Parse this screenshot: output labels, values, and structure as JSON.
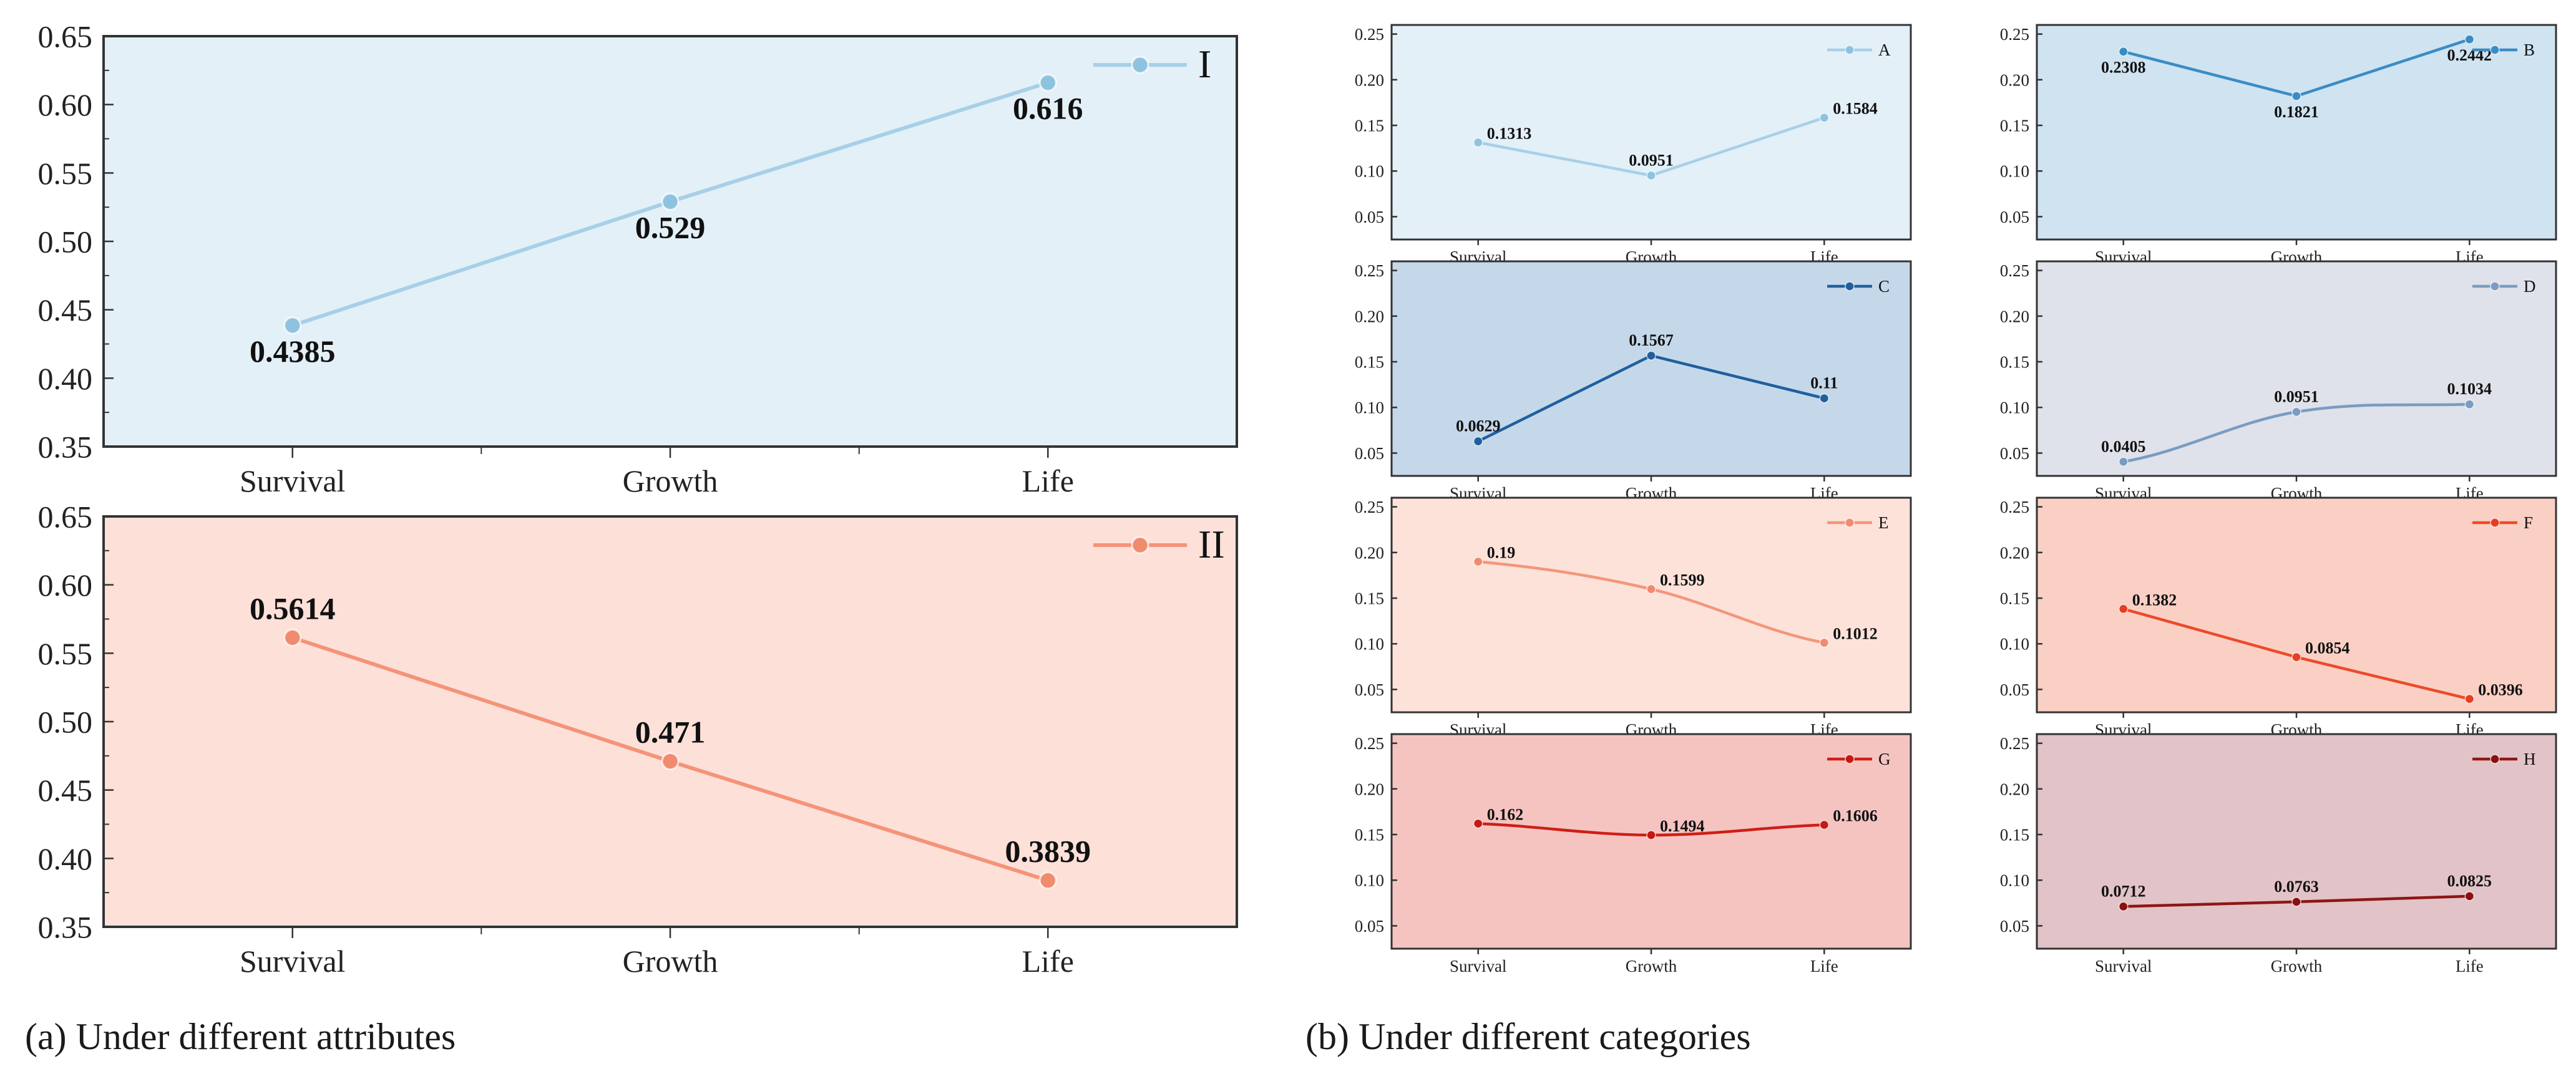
{
  "chart_data": [
    {
      "id": "I",
      "type": "line",
      "legend": "I",
      "legend_position": "top-right",
      "categories": [
        "Survival",
        "Growth",
        "Life"
      ],
      "values": [
        0.4385,
        0.529,
        0.616
      ],
      "labels": [
        "0.4385",
        "0.529",
        "0.616"
      ],
      "label_side": [
        "below",
        "below",
        "below"
      ],
      "ylim": [
        0.35,
        0.65
      ],
      "yticks": [
        "0.35",
        "0.40",
        "0.45",
        "0.50",
        "0.55",
        "0.60",
        "0.65"
      ],
      "bg": "#e3f0f8",
      "color": "#a7d0e7",
      "marker": "#8ec3e0",
      "smooth": false
    },
    {
      "id": "II",
      "type": "line",
      "legend": "II",
      "legend_position": "top-right",
      "categories": [
        "Survival",
        "Growth",
        "Life"
      ],
      "values": [
        0.5614,
        0.471,
        0.3839
      ],
      "labels": [
        "0.5614",
        "0.471",
        "0.3839"
      ],
      "label_side": [
        "above",
        "above",
        "above"
      ],
      "ylim": [
        0.35,
        0.65
      ],
      "yticks": [
        "0.35",
        "0.40",
        "0.45",
        "0.50",
        "0.55",
        "0.60",
        "0.65"
      ],
      "bg": "#fde0d8",
      "color": "#f59378",
      "marker": "#f08b6e",
      "smooth": false
    },
    {
      "id": "A",
      "type": "line",
      "legend": "A",
      "legend_position": "top-right",
      "categories": [
        "Survival",
        "Growth",
        "Life"
      ],
      "values": [
        0.1313,
        0.0951,
        0.1584
      ],
      "labels": [
        "0.1313",
        "0.0951",
        "0.1584"
      ],
      "label_side": [
        "right",
        "above",
        "right"
      ],
      "ylim": [
        0.025,
        0.26
      ],
      "yticks": [
        "0.05",
        "0.10",
        "0.15",
        "0.20",
        "0.25"
      ],
      "bg": "#e3f0f8",
      "color": "#a7d0e7",
      "marker": "#8ec3e0",
      "smooth": false
    },
    {
      "id": "B",
      "type": "line",
      "legend": "B",
      "legend_position": "top-right",
      "categories": [
        "Survival",
        "Growth",
        "Life"
      ],
      "values": [
        0.2308,
        0.1821,
        0.2442
      ],
      "labels": [
        "0.2308",
        "0.1821",
        "0.2442"
      ],
      "label_side": [
        "below",
        "below",
        "below"
      ],
      "ylim": [
        0.025,
        0.26
      ],
      "yticks": [
        "0.05",
        "0.10",
        "0.15",
        "0.20",
        "0.25"
      ],
      "bg": "#cfe3f1",
      "color": "#3a8cc4",
      "marker": "#3a8cc4",
      "smooth": false
    },
    {
      "id": "C",
      "type": "line",
      "legend": "C",
      "legend_position": "top-right",
      "categories": [
        "Survival",
        "Growth",
        "Life"
      ],
      "values": [
        0.0629,
        0.1567,
        0.11
      ],
      "labels": [
        "0.0629",
        "0.1567",
        "0.11"
      ],
      "label_side": [
        "above",
        "above",
        "above"
      ],
      "ylim": [
        0.025,
        0.26
      ],
      "yticks": [
        "0.05",
        "0.10",
        "0.15",
        "0.20",
        "0.25"
      ],
      "bg": "#c5d8ea",
      "color": "#1f5f9e",
      "marker": "#1f5f9e",
      "smooth": false
    },
    {
      "id": "D",
      "type": "line",
      "legend": "D",
      "legend_position": "top-right",
      "categories": [
        "Survival",
        "Growth",
        "Life"
      ],
      "values": [
        0.0405,
        0.0951,
        0.1034
      ],
      "labels": [
        "0.0405",
        "0.0951",
        "0.1034"
      ],
      "label_side": [
        "above",
        "above",
        "above"
      ],
      "ylim": [
        0.025,
        0.26
      ],
      "yticks": [
        "0.05",
        "0.10",
        "0.15",
        "0.20",
        "0.25"
      ],
      "bg": "#dfe2ea",
      "color": "#7a9cc2",
      "marker": "#7a9cc2",
      "smooth": true
    },
    {
      "id": "E",
      "type": "line",
      "legend": "E",
      "legend_position": "top-right",
      "categories": [
        "Survival",
        "Growth",
        "Life"
      ],
      "values": [
        0.19,
        0.1599,
        0.1012
      ],
      "labels": [
        "0.19",
        "0.1599",
        "0.1012"
      ],
      "label_side": [
        "right",
        "right",
        "right"
      ],
      "ylim": [
        0.025,
        0.26
      ],
      "yticks": [
        "0.05",
        "0.10",
        "0.15",
        "0.20",
        "0.25"
      ],
      "bg": "#fde2da",
      "color": "#f4967a",
      "marker": "#f08b6e",
      "smooth": true
    },
    {
      "id": "F",
      "type": "line",
      "legend": "F",
      "legend_position": "top-right",
      "categories": [
        "Survival",
        "Growth",
        "Life"
      ],
      "values": [
        0.1382,
        0.0854,
        0.0396
      ],
      "labels": [
        "0.1382",
        "0.0854",
        "0.0396"
      ],
      "label_side": [
        "right",
        "right",
        "right"
      ],
      "ylim": [
        0.025,
        0.26
      ],
      "yticks": [
        "0.05",
        "0.10",
        "0.15",
        "0.20",
        "0.25"
      ],
      "bg": "#fbd0c4",
      "color": "#ec4a2c",
      "marker": "#e63e22",
      "smooth": false
    },
    {
      "id": "G",
      "type": "line",
      "legend": "G",
      "legend_position": "top-right",
      "categories": [
        "Survival",
        "Growth",
        "Life"
      ],
      "values": [
        0.162,
        0.1494,
        0.1606
      ],
      "labels": [
        "0.162",
        "0.1494",
        "0.1606"
      ],
      "label_side": [
        "right",
        "right",
        "right"
      ],
      "ylim": [
        0.025,
        0.26
      ],
      "yticks": [
        "0.05",
        "0.10",
        "0.15",
        "0.20",
        "0.25"
      ],
      "bg": "#f5c4c1",
      "color": "#cf1e16",
      "marker": "#c41a14",
      "smooth": true
    },
    {
      "id": "H",
      "type": "line",
      "legend": "H",
      "legend_position": "top-right",
      "categories": [
        "Survival",
        "Growth",
        "Life"
      ],
      "values": [
        0.0712,
        0.0763,
        0.0825
      ],
      "labels": [
        "0.0712",
        "0.0763",
        "0.0825"
      ],
      "label_side": [
        "above",
        "above",
        "above"
      ],
      "ylim": [
        0.025,
        0.26
      ],
      "yticks": [
        "0.05",
        "0.10",
        "0.15",
        "0.20",
        "0.25"
      ],
      "bg": "#e2c3c7",
      "color": "#8e1616",
      "marker": "#8a1010",
      "smooth": false
    }
  ],
  "captions": {
    "a": "(a)  Under different attributes",
    "b": "(b)  Under different categories"
  }
}
